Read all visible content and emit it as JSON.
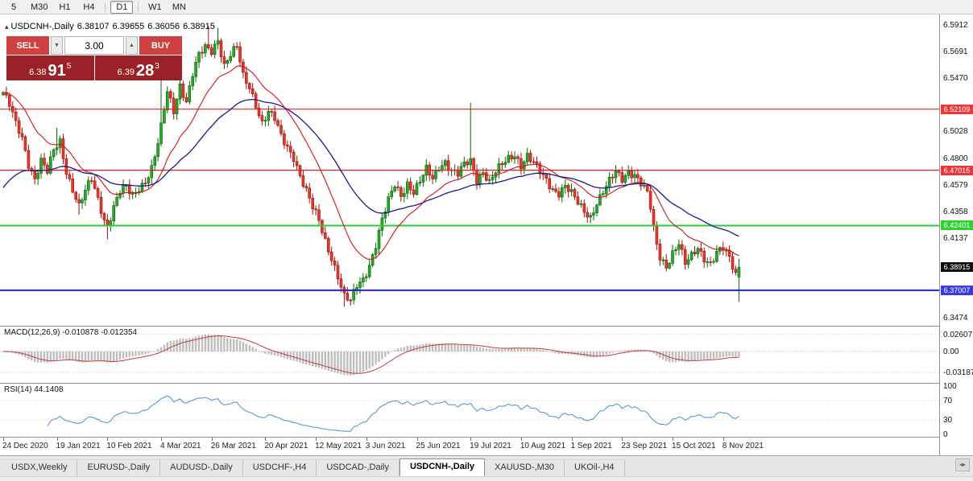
{
  "toolbar": {
    "items": [
      {
        "label": "5",
        "active": false
      },
      {
        "label": "M30",
        "active": false
      },
      {
        "label": "H1",
        "active": false
      },
      {
        "label": "H4",
        "active": false,
        "sep_after": true
      },
      {
        "label": "D1",
        "active": true,
        "sep_after": true
      },
      {
        "label": "W1",
        "active": false
      },
      {
        "label": "MN",
        "active": false
      }
    ]
  },
  "quote_bar": {
    "collapse_glyph": "▴",
    "symbol": "USDCNH-,Daily",
    "open": "6.38107",
    "high": "6.39655",
    "low": "6.36056",
    "close": "6.38915"
  },
  "trade_panel": {
    "sell_label": "SELL",
    "buy_label": "BUY",
    "volume": "3.00",
    "volume_down_glyph": "▼",
    "volume_up_glyph": "▲",
    "sell_price": {
      "small": "6.38",
      "big": "91",
      "sup": "5"
    },
    "buy_price": {
      "small": "6.39",
      "big": "28",
      "sup": "3"
    }
  },
  "price_axis": {
    "ticks": [
      {
        "label": "6.5912",
        "price": 6.5912
      },
      {
        "label": "6.5691",
        "price": 6.5691
      },
      {
        "label": "6.5470",
        "price": 6.547
      },
      {
        "label": "6.5028",
        "price": 6.5028
      },
      {
        "label": "6.4800",
        "price": 6.48
      },
      {
        "label": "6.4579",
        "price": 6.4579
      },
      {
        "label": "6.4358",
        "price": 6.4358
      },
      {
        "label": "6.4137",
        "price": 6.4137
      },
      {
        "label": "6.3474",
        "price": 6.3474
      }
    ],
    "badges": [
      {
        "label": "6.52109",
        "price": 6.52109,
        "bg": "#e83a3a"
      },
      {
        "label": "6.47015",
        "price": 6.47015,
        "bg": "#e83a3a"
      },
      {
        "label": "6.42401",
        "price": 6.42401,
        "bg": "#2fd32f"
      },
      {
        "label": "6.38915",
        "price": 6.38915,
        "bg": "#0d0d0d"
      },
      {
        "label": "6.37007",
        "price": 6.37007,
        "bg": "#3a3ae0"
      }
    ]
  },
  "hlines": [
    {
      "price": 6.52109,
      "color": "#e02020",
      "width": 1.2
    },
    {
      "price": 6.47015,
      "color": "#e02020",
      "width": 1.2
    },
    {
      "price": 6.42401,
      "color": "#2ecc2e",
      "width": 2
    },
    {
      "price": 6.37007,
      "color": "#2222cc",
      "width": 2
    }
  ],
  "macd": {
    "name": "MACD(12,26,9)",
    "value1": "-0.010878",
    "value2": "-0.012354",
    "axis": [
      {
        "label": "0.02607",
        "value": 0.02607
      },
      {
        "label": "0.00",
        "value": 0
      },
      {
        "label": "-0.03187",
        "value": -0.03187
      }
    ]
  },
  "rsi": {
    "name": "RSI(14)",
    "value": "44.1408",
    "axis": [
      {
        "label": "100",
        "value": 100
      },
      {
        "label": "70",
        "value": 70
      },
      {
        "label": "30",
        "value": 30
      },
      {
        "label": "0",
        "value": 0
      }
    ],
    "levels": [
      70,
      30
    ]
  },
  "time_axis": {
    "labels": [
      {
        "text": "24 Dec 2020",
        "index": 0
      },
      {
        "text": "19 Jan 2021",
        "index": 17
      },
      {
        "text": "10 Feb 2021",
        "index": 33
      },
      {
        "text": "4 Mar 2021",
        "index": 50
      },
      {
        "text": "26 Mar 2021",
        "index": 66
      },
      {
        "text": "20 Apr 2021",
        "index": 83
      },
      {
        "text": "12 May 2021",
        "index": 99
      },
      {
        "text": "3 Jun 2021",
        "index": 115
      },
      {
        "text": "25 Jun 2021",
        "index": 131
      },
      {
        "text": "19 Jul 2021",
        "index": 148
      },
      {
        "text": "10 Aug 2021",
        "index": 164
      },
      {
        "text": "1 Sep 2021",
        "index": 180
      },
      {
        "text": "23 Sep 2021",
        "index": 196
      },
      {
        "text": "15 Oct 2021",
        "index": 212
      },
      {
        "text": "8 Nov 2021",
        "index": 228
      }
    ]
  },
  "tabs": [
    {
      "label": "USDX,Weekly",
      "active": false
    },
    {
      "label": "EURUSD-,Daily",
      "active": false
    },
    {
      "label": "AUDUSD-,Daily",
      "active": false
    },
    {
      "label": "USDCHF-,H4",
      "active": false
    },
    {
      "label": "USDCAD-,Daily",
      "active": false
    },
    {
      "label": "USDCNH-,Daily",
      "active": true
    },
    {
      "label": "XAUUSD-,M30",
      "active": false
    },
    {
      "label": "UKOil-,H4",
      "active": false
    }
  ],
  "colors": {
    "up_fill": "#2aa82a",
    "up_stroke": "#0a640a",
    "down_fill": "#e23b2e",
    "down_stroke": "#9c150b",
    "ma_fast": "#d21414",
    "ma_slow": "#1a1a8a",
    "macd_hist": "#bdbdbd",
    "macd_signal": "#c23b3b",
    "rsi_line": "#4e8ed0",
    "grid_dot": "#c8c8c8"
  },
  "chart_data": {
    "type": "candlestick",
    "symbol": "USDCNH-",
    "timeframe": "Daily",
    "count": 234,
    "price_range": [
      6.3405,
      6.6
    ],
    "last_candle": {
      "open": 6.38107,
      "high": 6.39655,
      "low": 6.36056,
      "close": 6.38915
    },
    "anchors": [
      [
        0,
        6.535
      ],
      [
        2,
        6.524
      ],
      [
        4,
        6.508
      ],
      [
        6,
        6.497
      ],
      [
        8,
        6.476
      ],
      [
        10,
        6.464
      ],
      [
        12,
        6.478
      ],
      [
        14,
        6.468
      ],
      [
        16,
        6.486
      ],
      [
        18,
        6.494
      ],
      [
        20,
        6.47
      ],
      [
        22,
        6.455
      ],
      [
        24,
        6.44
      ],
      [
        26,
        6.452
      ],
      [
        28,
        6.462
      ],
      [
        30,
        6.446
      ],
      [
        32,
        6.43
      ],
      [
        33,
        6.424
      ],
      [
        35,
        6.44
      ],
      [
        37,
        6.452
      ],
      [
        39,
        6.455
      ],
      [
        41,
        6.448
      ],
      [
        43,
        6.456
      ],
      [
        45,
        6.462
      ],
      [
        47,
        6.472
      ],
      [
        49,
        6.492
      ],
      [
        50,
        6.505
      ],
      [
        52,
        6.535
      ],
      [
        54,
        6.52
      ],
      [
        56,
        6.542
      ],
      [
        58,
        6.528
      ],
      [
        60,
        6.55
      ],
      [
        62,
        6.565
      ],
      [
        64,
        6.572
      ],
      [
        66,
        6.57
      ],
      [
        68,
        6.58
      ],
      [
        70,
        6.558
      ],
      [
        72,
        6.566
      ],
      [
        74,
        6.572
      ],
      [
        76,
        6.548
      ],
      [
        78,
        6.54
      ],
      [
        80,
        6.526
      ],
      [
        82,
        6.51
      ],
      [
        84,
        6.518
      ],
      [
        86,
        6.512
      ],
      [
        88,
        6.498
      ],
      [
        90,
        6.49
      ],
      [
        92,
        6.482
      ],
      [
        94,
        6.466
      ],
      [
        96,
        6.452
      ],
      [
        98,
        6.438
      ],
      [
        100,
        6.428
      ],
      [
        102,
        6.412
      ],
      [
        104,
        6.398
      ],
      [
        106,
        6.382
      ],
      [
        108,
        6.364
      ],
      [
        110,
        6.36
      ],
      [
        112,
        6.374
      ],
      [
        114,
        6.38
      ],
      [
        116,
        6.392
      ],
      [
        118,
        6.408
      ],
      [
        120,
        6.428
      ],
      [
        122,
        6.444
      ],
      [
        124,
        6.458
      ],
      [
        126,
        6.45
      ],
      [
        128,
        6.46
      ],
      [
        130,
        6.452
      ],
      [
        132,
        6.46
      ],
      [
        134,
        6.47
      ],
      [
        136,
        6.463
      ],
      [
        138,
        6.474
      ],
      [
        140,
        6.478
      ],
      [
        142,
        6.47
      ],
      [
        144,
        6.466
      ],
      [
        146,
        6.474
      ],
      [
        148,
        6.478
      ],
      [
        150,
        6.463
      ],
      [
        152,
        6.47
      ],
      [
        154,
        6.46
      ],
      [
        156,
        6.468
      ],
      [
        158,
        6.474
      ],
      [
        160,
        6.48
      ],
      [
        162,
        6.484
      ],
      [
        164,
        6.475
      ],
      [
        166,
        6.482
      ],
      [
        168,
        6.475
      ],
      [
        170,
        6.468
      ],
      [
        172,
        6.462
      ],
      [
        174,
        6.455
      ],
      [
        176,
        6.452
      ],
      [
        178,
        6.457
      ],
      [
        180,
        6.45
      ],
      [
        182,
        6.442
      ],
      [
        184,
        6.436
      ],
      [
        186,
        6.432
      ],
      [
        188,
        6.444
      ],
      [
        190,
        6.452
      ],
      [
        192,
        6.46
      ],
      [
        194,
        6.468
      ],
      [
        196,
        6.463
      ],
      [
        198,
        6.47
      ],
      [
        200,
        6.467
      ],
      [
        202,
        6.459
      ],
      [
        204,
        6.45
      ],
      [
        205,
        6.438
      ],
      [
        206,
        6.42
      ],
      [
        207,
        6.408
      ],
      [
        208,
        6.398
      ],
      [
        210,
        6.391
      ],
      [
        212,
        6.402
      ],
      [
        214,
        6.409
      ],
      [
        216,
        6.391
      ],
      [
        218,
        6.398
      ],
      [
        220,
        6.406
      ],
      [
        222,
        6.398
      ],
      [
        224,
        6.393
      ],
      [
        226,
        6.401
      ],
      [
        228,
        6.404
      ],
      [
        230,
        6.396
      ],
      [
        232,
        6.384
      ],
      [
        233,
        6.38915
      ]
    ],
    "spikes": [
      [
        17,
        "h",
        6.5055
      ],
      [
        50,
        "h",
        6.5655
      ],
      [
        65,
        "h",
        6.5905
      ],
      [
        68,
        "h",
        6.589
      ],
      [
        148,
        "h",
        6.5265
      ],
      [
        24,
        "l",
        6.433
      ],
      [
        33,
        "l",
        6.4125
      ],
      [
        108,
        "l",
        6.3565
      ],
      [
        110,
        "l",
        6.3572
      ]
    ],
    "moving_averages": [
      {
        "name": "fast",
        "period": 18
      },
      {
        "name": "slow",
        "period": 45
      }
    ],
    "indicators": [
      {
        "name": "MACD",
        "params": "12,26,9",
        "values": [
          -0.010878,
          -0.012354
        ]
      },
      {
        "name": "RSI",
        "params": "14",
        "value": 44.1408
      }
    ]
  }
}
